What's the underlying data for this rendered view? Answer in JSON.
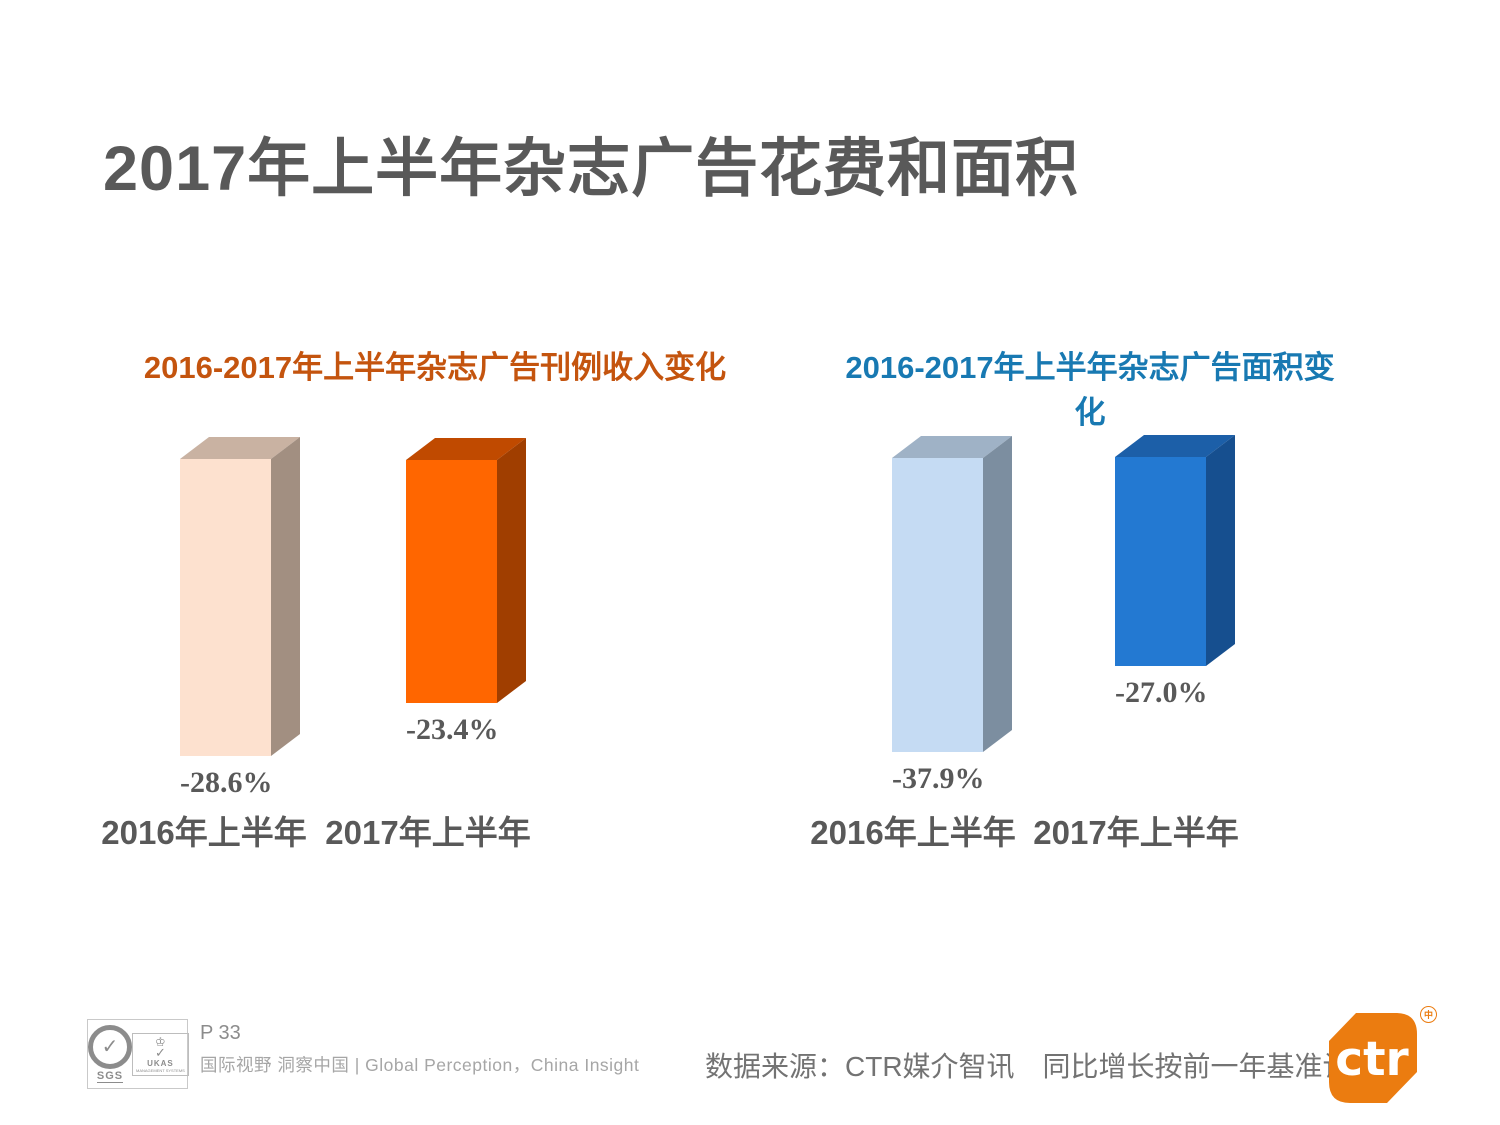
{
  "slide": {
    "title": "2017年上半年杂志广告花费和面积",
    "text_color": "#595959"
  },
  "chart_data": [
    {
      "type": "bar",
      "style": "3d-column",
      "title": "2016-2017年上半年杂志广告刊例收入变化",
      "title_color": "#C4540E",
      "categories": [
        "2016年上半年",
        "2017年上半年"
      ],
      "values": [
        -28.6,
        -23.4
      ],
      "value_labels": [
        "-28.6%",
        "-23.4%"
      ],
      "unit": "%",
      "grid": false,
      "legend": "none",
      "axis_hidden": true,
      "colors": [
        {
          "front": "#FDE1CF",
          "top": "#C9B2A2",
          "side": "#A28F81"
        },
        {
          "front": "#FF6600",
          "top": "#C04A00",
          "side": "#A03E00"
        }
      ]
    },
    {
      "type": "bar",
      "style": "3d-column",
      "title": "2016-2017年上半年杂志广告面积变化",
      "title_color": "#1879B2",
      "categories": [
        "2016年上半年",
        "2017年上半年"
      ],
      "values": [
        -37.9,
        -27.0
      ],
      "value_labels": [
        "-37.9%",
        "-27.0%"
      ],
      "unit": "%",
      "grid": false,
      "legend": "none",
      "axis_hidden": true,
      "colors": [
        {
          "front": "#C5DBF3",
          "top": "#9FB2C6",
          "side": "#7C8EA0"
        },
        {
          "front": "#2379D2",
          "top": "#1C5FA8",
          "side": "#164F8F"
        }
      ]
    }
  ],
  "footer": {
    "page": "P 33",
    "tagline": "国际视野 洞察中国 | Global Perception，China Insight",
    "source": "数据来源：CTR媒介智讯　同比增长按前一年基准计算",
    "cert_sgs": "SGS",
    "cert_sgs_check": "✓",
    "cert_ukas_crown": "♔",
    "cert_ukas_check": "✓",
    "cert_ukas": "UKAS",
    "cert_ukas_sub": "MANAGEMENT SYSTEMS",
    "logo_text": "ctr",
    "logo_mark": "中",
    "logo_color": "#EB7C10"
  }
}
